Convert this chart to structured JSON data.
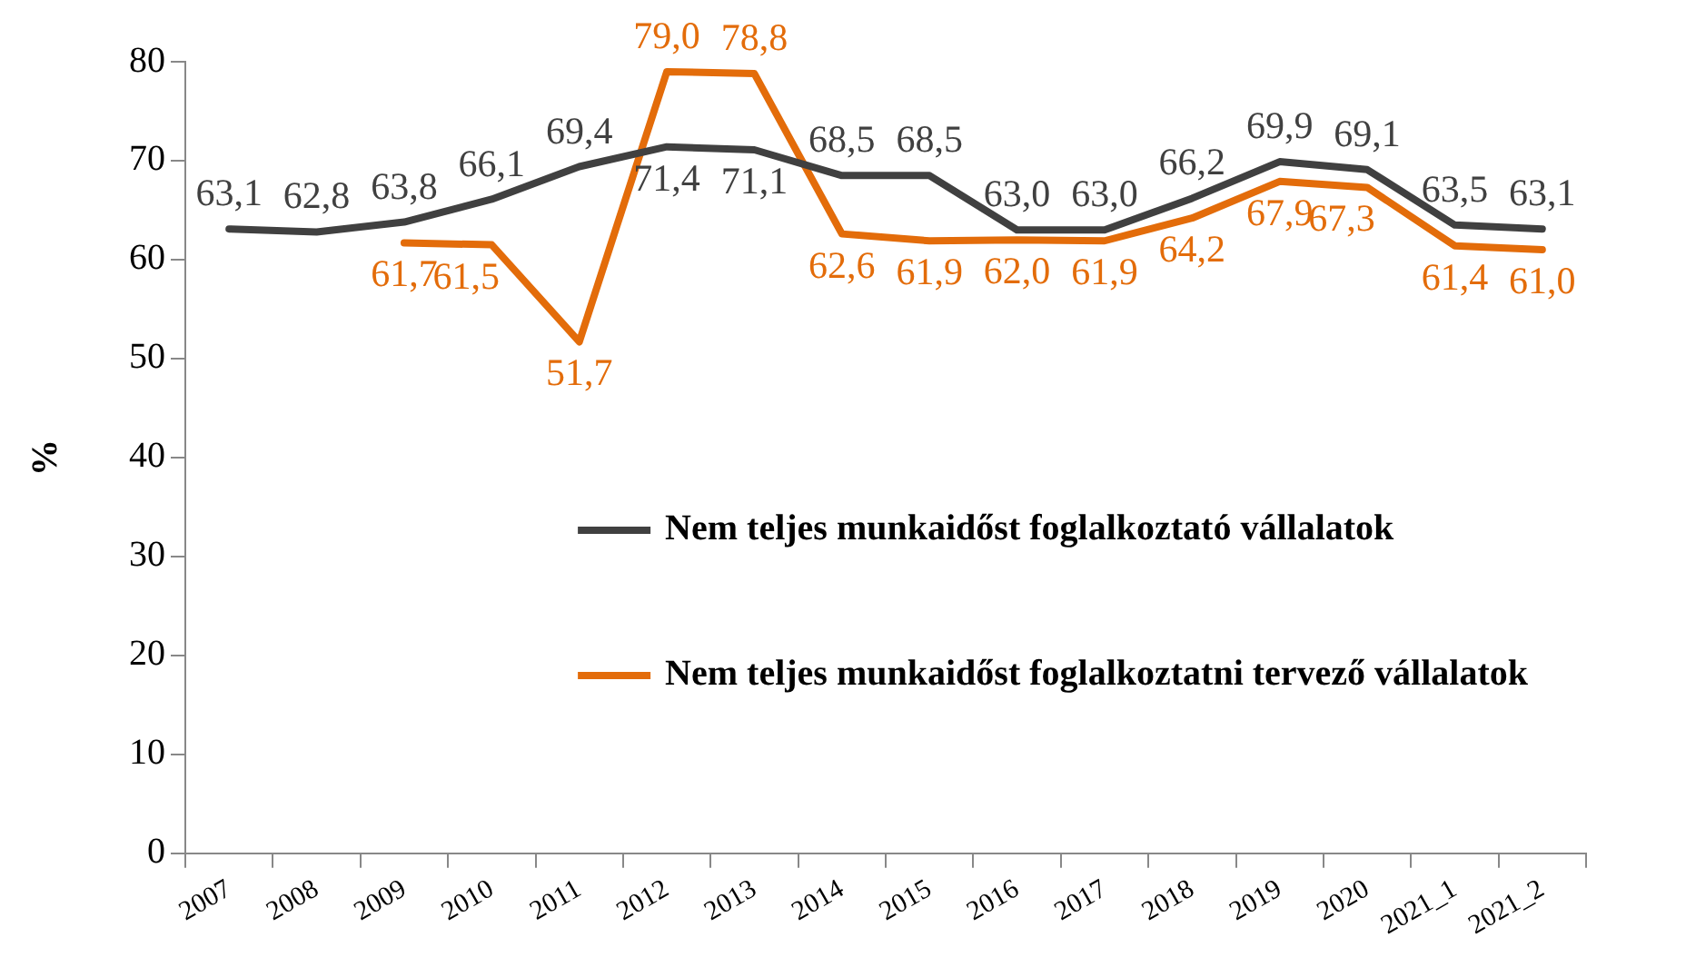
{
  "chart_data": {
    "type": "line",
    "ylabel": "%",
    "categories": [
      "2007",
      "2008",
      "2009",
      "2010",
      "2011",
      "2012",
      "2013",
      "2014",
      "2015",
      "2016",
      "2017",
      "2018",
      "2019",
      "2020",
      "2021_1",
      "2021_2"
    ],
    "series": [
      {
        "name": "Nem teljes munkaidőst foglalkoztató vállalatok",
        "color": "#404040",
        "values": [
          63.1,
          62.8,
          63.8,
          66.1,
          69.4,
          71.4,
          71.1,
          68.5,
          68.5,
          63.0,
          63.0,
          66.2,
          69.9,
          69.1,
          63.5,
          63.1
        ],
        "value_labels": [
          "63,1",
          "62,8",
          "63,8",
          "66,1",
          "69,4",
          "71,4",
          "71,1",
          "68,5",
          "68,5",
          "63,0",
          "63,0",
          "66,2",
          "69,9",
          "69,1",
          "63,5",
          "63,1"
        ]
      },
      {
        "name": "Nem teljes munkaidőst foglalkoztatni tervező vállalatok",
        "color": "#e36c0a",
        "values": [
          null,
          null,
          61.7,
          61.5,
          51.7,
          79.0,
          78.8,
          62.6,
          61.9,
          62.0,
          61.9,
          64.2,
          67.9,
          67.3,
          61.4,
          61.0
        ],
        "value_labels": [
          null,
          null,
          "61,7",
          "61,5",
          "51,7",
          "79,0",
          "78,8",
          "62,6",
          "61,9",
          "62,0",
          "61,9",
          "64,2",
          "67,9",
          "67,3",
          "61,4",
          "61,0"
        ]
      }
    ],
    "ylim": [
      0,
      80
    ],
    "yticks": [
      0,
      10,
      20,
      30,
      40,
      50,
      60,
      70,
      80
    ],
    "grid": false,
    "legend": "center right",
    "marker": "none",
    "line_style": "solid"
  }
}
